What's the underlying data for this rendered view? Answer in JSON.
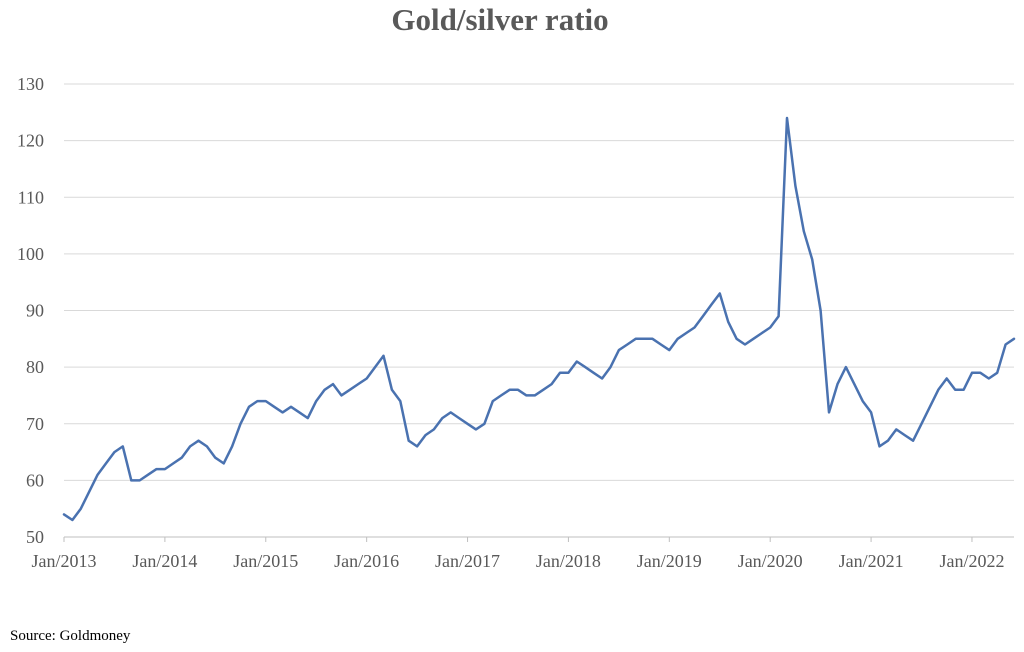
{
  "chart_data": {
    "type": "line",
    "title": "Gold/silver ratio",
    "source": "Source: Goldmoney",
    "ylim": [
      50,
      130
    ],
    "yticks": [
      50,
      60,
      70,
      80,
      90,
      100,
      110,
      120,
      130
    ],
    "xlim": [
      "2013-01",
      "2022-06"
    ],
    "xtick_labels": [
      "Jan/2013",
      "Jan/2014",
      "Jan/2015",
      "Jan/2016",
      "Jan/2017",
      "Jan/2018",
      "Jan/2019",
      "Jan/2020",
      "Jan/2021",
      "Jan/2022"
    ],
    "xtick_dates": [
      "2013-01",
      "2014-01",
      "2015-01",
      "2016-01",
      "2017-01",
      "2018-01",
      "2019-01",
      "2020-01",
      "2021-01",
      "2022-01"
    ],
    "grid": "horizontal",
    "legend": "none",
    "line_color": "#4a72b0",
    "series": [
      {
        "x": [
          "2013-01",
          "2013-02",
          "2013-03",
          "2013-04",
          "2013-05",
          "2013-06",
          "2013-07",
          "2013-08",
          "2013-09",
          "2013-10",
          "2013-11",
          "2013-12",
          "2014-01",
          "2014-02",
          "2014-03",
          "2014-04",
          "2014-05",
          "2014-06",
          "2014-07",
          "2014-08",
          "2014-09",
          "2014-10",
          "2014-11",
          "2014-12",
          "2015-01",
          "2015-02",
          "2015-03",
          "2015-04",
          "2015-05",
          "2015-06",
          "2015-07",
          "2015-08",
          "2015-09",
          "2015-10",
          "2015-11",
          "2015-12",
          "2016-01",
          "2016-02",
          "2016-03",
          "2016-04",
          "2016-05",
          "2016-06",
          "2016-07",
          "2016-08",
          "2016-09",
          "2016-10",
          "2016-11",
          "2016-12",
          "2017-01",
          "2017-02",
          "2017-03",
          "2017-04",
          "2017-05",
          "2017-06",
          "2017-07",
          "2017-08",
          "2017-09",
          "2017-10",
          "2017-11",
          "2017-12",
          "2018-01",
          "2018-02",
          "2018-03",
          "2018-04",
          "2018-05",
          "2018-06",
          "2018-07",
          "2018-08",
          "2018-09",
          "2018-10",
          "2018-11",
          "2018-12",
          "2019-01",
          "2019-02",
          "2019-03",
          "2019-04",
          "2019-05",
          "2019-06",
          "2019-07",
          "2019-08",
          "2019-09",
          "2019-10",
          "2019-11",
          "2019-12",
          "2020-01",
          "2020-02",
          "2020-03",
          "2020-04",
          "2020-05",
          "2020-06",
          "2020-07",
          "2020-08",
          "2020-09",
          "2020-10",
          "2020-11",
          "2020-12",
          "2021-01",
          "2021-02",
          "2021-03",
          "2021-04",
          "2021-05",
          "2021-06",
          "2021-07",
          "2021-08",
          "2021-09",
          "2021-10",
          "2021-11",
          "2021-12",
          "2022-01",
          "2022-02",
          "2022-03",
          "2022-04",
          "2022-05",
          "2022-06"
        ],
        "y": [
          54,
          53,
          55,
          58,
          61,
          63,
          65,
          66,
          60,
          60,
          61,
          62,
          62,
          63,
          64,
          66,
          67,
          66,
          64,
          63,
          66,
          70,
          73,
          74,
          74,
          73,
          72,
          73,
          72,
          71,
          74,
          76,
          77,
          75,
          76,
          77,
          78,
          80,
          82,
          76,
          74,
          67,
          66,
          68,
          69,
          71,
          72,
          71,
          70,
          69,
          70,
          74,
          75,
          76,
          76,
          75,
          75,
          76,
          77,
          79,
          79,
          81,
          80,
          79,
          78,
          80,
          83,
          84,
          85,
          85,
          85,
          84,
          83,
          85,
          86,
          87,
          89,
          91,
          93,
          88,
          85,
          84,
          85,
          86,
          87,
          89,
          124,
          112,
          104,
          99,
          90,
          72,
          77,
          80,
          77,
          74,
          72,
          66,
          67,
          69,
          68,
          67,
          70,
          73,
          76,
          78,
          76,
          76,
          79,
          79,
          78,
          79,
          84,
          85
        ]
      }
    ]
  }
}
